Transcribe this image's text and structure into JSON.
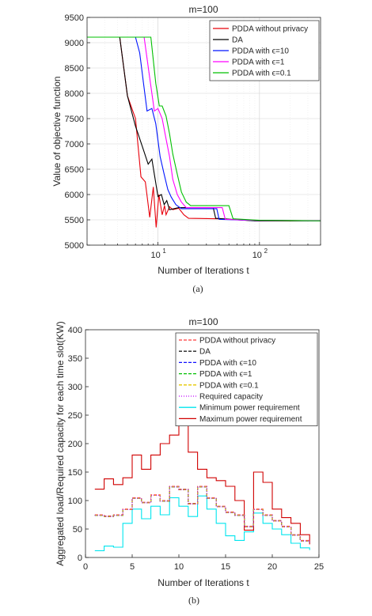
{
  "chart_data": [
    {
      "type": "line",
      "title": "m=100",
      "xlabel": "Number of Iterations t",
      "ylabel": "Value of objective function",
      "caption": "(a)",
      "xscale": "log",
      "xlim": [
        2,
        400
      ],
      "ylim": [
        5000,
        9500
      ],
      "yticks": [
        5000,
        5500,
        6000,
        6500,
        7000,
        7500,
        8000,
        8500,
        9000,
        9500
      ],
      "xticks": [
        {
          "v": 10,
          "b": "10",
          "e": "1"
        },
        {
          "v": 100,
          "b": "10",
          "e": "2"
        }
      ],
      "grid": true,
      "legend_position": "top-right",
      "series": [
        {
          "name": "PDDA without privacy",
          "color": "#e8000b",
          "points": [
            [
              2,
              9110
            ],
            [
              4.2,
              9110
            ],
            [
              5,
              7950
            ],
            [
              6,
              7500
            ],
            [
              6.8,
              6350
            ],
            [
              7.5,
              6250
            ],
            [
              8.3,
              5550
            ],
            [
              9,
              6150
            ],
            [
              9.6,
              5350
            ],
            [
              10.2,
              6000
            ],
            [
              11,
              5600
            ],
            [
              11.6,
              5780
            ],
            [
              12,
              5600
            ],
            [
              13,
              5760
            ],
            [
              14,
              5700
            ],
            [
              16,
              5730
            ],
            [
              18,
              5600
            ],
            [
              20,
              5530
            ],
            [
              40,
              5520
            ],
            [
              60,
              5500
            ],
            [
              100,
              5480
            ],
            [
              400,
              5480
            ]
          ]
        },
        {
          "name": "DA",
          "color": "#000000",
          "points": [
            [
              2,
              9110
            ],
            [
              4.2,
              9110
            ],
            [
              5,
              7950
            ],
            [
              6,
              7350
            ],
            [
              7,
              6950
            ],
            [
              8,
              6600
            ],
            [
              8.7,
              6700
            ],
            [
              9.2,
              6400
            ],
            [
              10,
              5960
            ],
            [
              10.8,
              6000
            ],
            [
              11.5,
              5800
            ],
            [
              12.2,
              5880
            ],
            [
              13,
              5700
            ],
            [
              16,
              5740
            ],
            [
              35,
              5740
            ],
            [
              37,
              5530
            ],
            [
              90,
              5480
            ],
            [
              400,
              5480
            ]
          ]
        },
        {
          "name": "PDDA with ϵ=10",
          "color": "#0015ff",
          "points": [
            [
              2,
              9110
            ],
            [
              6,
              9110
            ],
            [
              6.6,
              8800
            ],
            [
              7.2,
              8200
            ],
            [
              7.8,
              7650
            ],
            [
              8.7,
              7700
            ],
            [
              9.5,
              7400
            ],
            [
              10.5,
              6750
            ],
            [
              11.5,
              6400
            ],
            [
              12.5,
              6100
            ],
            [
              13.5,
              5950
            ],
            [
              15,
              5800
            ],
            [
              17,
              5720
            ],
            [
              20,
              5720
            ],
            [
              38,
              5720
            ],
            [
              40,
              5510
            ],
            [
              80,
              5490
            ],
            [
              400,
              5480
            ]
          ]
        },
        {
          "name": "PDDA with ϵ=1",
          "color": "#ff00ff",
          "points": [
            [
              2,
              9110
            ],
            [
              7.3,
              9110
            ],
            [
              8.3,
              8300
            ],
            [
              9.2,
              7650
            ],
            [
              10,
              7700
            ],
            [
              11,
              7500
            ],
            [
              12,
              7100
            ],
            [
              13,
              6750
            ],
            [
              14,
              6300
            ],
            [
              15.5,
              6000
            ],
            [
              17,
              5850
            ],
            [
              19,
              5740
            ],
            [
              43,
              5740
            ],
            [
              46,
              5510
            ],
            [
              90,
              5490
            ],
            [
              400,
              5480
            ]
          ]
        },
        {
          "name": "PDDA with ϵ=0.1",
          "color": "#00c000",
          "points": [
            [
              2,
              9110
            ],
            [
              8.5,
              9110
            ],
            [
              9.5,
              8200
            ],
            [
              10.3,
              7750
            ],
            [
              11,
              7750
            ],
            [
              12,
              7550
            ],
            [
              13,
              7200
            ],
            [
              14,
              6800
            ],
            [
              15.5,
              6400
            ],
            [
              17,
              6050
            ],
            [
              19,
              5850
            ],
            [
              21,
              5780
            ],
            [
              50,
              5780
            ],
            [
              55,
              5520
            ],
            [
              100,
              5490
            ],
            [
              400,
              5480
            ]
          ]
        }
      ]
    },
    {
      "type": "line",
      "title": "m=100",
      "xlabel": "Number of Iterations t",
      "ylabel": "Aggregated load/Required capacity for each time slot(KW)",
      "caption": "(b)",
      "xlim": [
        0,
        25
      ],
      "ylim": [
        0,
        400
      ],
      "xticks": [
        0,
        5,
        10,
        15,
        20,
        25
      ],
      "yticks": [
        0,
        50,
        100,
        150,
        200,
        250,
        300,
        350,
        400
      ],
      "grid": false,
      "legend_position": "top-right",
      "x": [
        1,
        2,
        3,
        4,
        5,
        6,
        7,
        8,
        9,
        10,
        11,
        12,
        13,
        14,
        15,
        16,
        17,
        18,
        19,
        20,
        21,
        22,
        23,
        24
      ],
      "series": [
        {
          "name": "PDDA without privacy",
          "color": "#ff3b3b",
          "dash": "4,2",
          "values": [
            75,
            73,
            75,
            85,
            105,
            97,
            110,
            100,
            125,
            120,
            95,
            125,
            105,
            90,
            80,
            75,
            55,
            85,
            75,
            65,
            55,
            40,
            30,
            28
          ]
        },
        {
          "name": "DA",
          "color": "#202020",
          "dash": "4,2",
          "values": [
            74,
            72,
            74,
            84,
            104,
            96,
            109,
            99,
            124,
            119,
            94,
            124,
            104,
            89,
            79,
            74,
            54,
            84,
            74,
            64,
            54,
            39,
            29,
            27
          ]
        },
        {
          "name": "PDDA with ϵ=10",
          "color": "#1010ff",
          "dash": "4,2",
          "values": [
            74,
            72,
            74,
            84,
            104,
            96,
            109,
            99,
            124,
            119,
            94,
            124,
            104,
            89,
            79,
            74,
            54,
            84,
            74,
            64,
            54,
            39,
            29,
            27
          ]
        },
        {
          "name": "PDDA with ϵ=1",
          "color": "#00c000",
          "dash": "4,2",
          "values": [
            74,
            72,
            74,
            84,
            104,
            96,
            109,
            99,
            124,
            119,
            94,
            124,
            104,
            89,
            79,
            74,
            54,
            84,
            74,
            64,
            54,
            39,
            29,
            27
          ]
        },
        {
          "name": "PDDA with ϵ=0.1",
          "color": "#e6c800",
          "dash": "4,2",
          "values": [
            74,
            72,
            74,
            84,
            104,
            96,
            109,
            99,
            124,
            119,
            94,
            124,
            104,
            89,
            79,
            74,
            54,
            84,
            74,
            64,
            54,
            39,
            29,
            27
          ]
        },
        {
          "name": "Required capacity",
          "color": "#c000ff",
          "dash": "1,2",
          "values": [
            74,
            72,
            74,
            84,
            104,
            96,
            109,
            99,
            124,
            119,
            94,
            124,
            104,
            89,
            79,
            74,
            54,
            84,
            74,
            64,
            54,
            39,
            29,
            27
          ]
        },
        {
          "name": "Minimum power requirement",
          "color": "#00e5ee",
          "dash": "",
          "values": [
            12,
            20,
            18,
            60,
            85,
            68,
            90,
            75,
            105,
            90,
            72,
            108,
            85,
            60,
            38,
            30,
            45,
            78,
            60,
            50,
            40,
            25,
            17,
            13
          ]
        },
        {
          "name": "Maximum power requirement",
          "color": "#d00000",
          "dash": "",
          "values": [
            120,
            138,
            128,
            140,
            180,
            155,
            180,
            200,
            215,
            235,
            185,
            155,
            140,
            135,
            125,
            100,
            48,
            150,
            132,
            85,
            70,
            60,
            40,
            23
          ]
        }
      ]
    }
  ]
}
